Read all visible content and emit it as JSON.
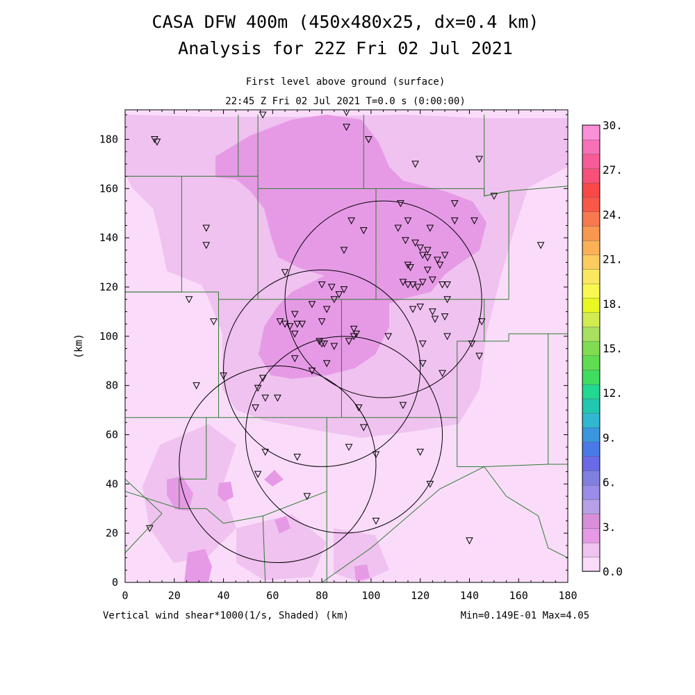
{
  "title_line1": "CASA DFW 400m (450x480x25, dx=0.4 km)",
  "title_line2": "Analysis for 22Z Fri 02 Jul 2021",
  "subtitle_line1": "First level above ground (surface)",
  "subtitle_line2": "22:45 Z Fri 02 Jul 2021   T=0.0 s (0:00:00)",
  "footer_left": "Vertical wind shear*1000(1/s, Shaded)  (km)",
  "footer_right": "Min=0.149E-01 Max=4.05",
  "y_axis_label": "(km)",
  "x_ticks": [
    "0",
    "20",
    "40",
    "60",
    "80",
    "100",
    "120",
    "140",
    "160",
    "180"
  ],
  "y_ticks": [
    "0",
    "20",
    "40",
    "60",
    "80",
    "100",
    "120",
    "140",
    "160",
    "180"
  ],
  "colorbar_labels": [
    "30.",
    "27.",
    "24.",
    "21.",
    "18.",
    "15.",
    "12.",
    "9.",
    "6.",
    "3.",
    "0.0"
  ],
  "colorbar_colors": [
    "#fadcfa",
    "#f0c2f0",
    "#e69ae6",
    "#d88ed8",
    "#b8a0e8",
    "#9a8ce8",
    "#8080e0",
    "#6a6ae8",
    "#4a7ae8",
    "#3a96e0",
    "#30b8d0",
    "#20c8b0",
    "#20d890",
    "#40dc60",
    "#60dc50",
    "#80dc50",
    "#a8e060",
    "#d0ec50",
    "#e8f820",
    "#f8f850",
    "#fce860",
    "#fccc60",
    "#fcb058",
    "#f89850",
    "#f87850",
    "#f85848",
    "#f84848",
    "#f85078",
    "#f85c98",
    "#f870b8",
    "#fc90d8"
  ],
  "radar_markers": [
    [
      12,
      180
    ],
    [
      13,
      179
    ],
    [
      56,
      190
    ],
    [
      90,
      191
    ],
    [
      90,
      185
    ],
    [
      99,
      180
    ],
    [
      118,
      170
    ],
    [
      144,
      172
    ],
    [
      150,
      157
    ],
    [
      33,
      144
    ],
    [
      33,
      137
    ],
    [
      112,
      154
    ],
    [
      134,
      154
    ],
    [
      92,
      147
    ],
    [
      115,
      147
    ],
    [
      134,
      147
    ],
    [
      142,
      147
    ],
    [
      111,
      144
    ],
    [
      124,
      144
    ],
    [
      97,
      143
    ],
    [
      169,
      137
    ],
    [
      114,
      139
    ],
    [
      118,
      138
    ],
    [
      120,
      136
    ],
    [
      123,
      135
    ],
    [
      89,
      135
    ],
    [
      121,
      133
    ],
    [
      123,
      132
    ],
    [
      127,
      131
    ],
    [
      130,
      133
    ],
    [
      115,
      129
    ],
    [
      116,
      128
    ],
    [
      123,
      127
    ],
    [
      128,
      129
    ],
    [
      65,
      126
    ],
    [
      113,
      122
    ],
    [
      115,
      121
    ],
    [
      117,
      121
    ],
    [
      119,
      120
    ],
    [
      121,
      122
    ],
    [
      125,
      123
    ],
    [
      129,
      121
    ],
    [
      131,
      121
    ],
    [
      80,
      121
    ],
    [
      84,
      120
    ],
    [
      89,
      119
    ],
    [
      87,
      117
    ],
    [
      85,
      115
    ],
    [
      26,
      115
    ],
    [
      76,
      113
    ],
    [
      82,
      111
    ],
    [
      120,
      112
    ],
    [
      117,
      111
    ],
    [
      131,
      115
    ],
    [
      125,
      110
    ],
    [
      126,
      107
    ],
    [
      130,
      108
    ],
    [
      69,
      109
    ],
    [
      63,
      106
    ],
    [
      65,
      105
    ],
    [
      67,
      104
    ],
    [
      70,
      105
    ],
    [
      72,
      105
    ],
    [
      80,
      106
    ],
    [
      36,
      106
    ],
    [
      145,
      106
    ],
    [
      93,
      103
    ],
    [
      94,
      101
    ],
    [
      93,
      100
    ],
    [
      69,
      101
    ],
    [
      107,
      100
    ],
    [
      131,
      100
    ],
    [
      79,
      98
    ],
    [
      81,
      97
    ],
    [
      80,
      97
    ],
    [
      85,
      96
    ],
    [
      91,
      98
    ],
    [
      121,
      97
    ],
    [
      141,
      97
    ],
    [
      69,
      91
    ],
    [
      82,
      89
    ],
    [
      76,
      86
    ],
    [
      121,
      89
    ],
    [
      129,
      85
    ],
    [
      40,
      84
    ],
    [
      56,
      83
    ],
    [
      144,
      92
    ],
    [
      29,
      80
    ],
    [
      54,
      79
    ],
    [
      57,
      75
    ],
    [
      62,
      75
    ],
    [
      113,
      72
    ],
    [
      95,
      71
    ],
    [
      53,
      71
    ],
    [
      97,
      63
    ],
    [
      57,
      53
    ],
    [
      70,
      51
    ],
    [
      91,
      55
    ],
    [
      102,
      52
    ],
    [
      120,
      53
    ],
    [
      54,
      44
    ],
    [
      74,
      35
    ],
    [
      124,
      40
    ],
    [
      10,
      22
    ],
    [
      102,
      25
    ],
    [
      140,
      17
    ]
  ],
  "radar_rings": [
    [
      62,
      48,
      40
    ],
    [
      80,
      87,
      40
    ],
    [
      89,
      60,
      40
    ],
    [
      105,
      115,
      40
    ]
  ],
  "county_lines": [
    [
      [
        0,
        165
      ],
      [
        23,
        165
      ],
      [
        23,
        118
      ],
      [
        0,
        118
      ]
    ],
    [
      [
        46,
        190
      ],
      [
        46,
        165
      ],
      [
        23,
        165
      ]
    ],
    [
      [
        46,
        165
      ],
      [
        54,
        165
      ],
      [
        54,
        160
      ]
    ],
    [
      [
        54,
        190
      ],
      [
        54,
        165
      ]
    ],
    [
      [
        54,
        160
      ],
      [
        102,
        160
      ],
      [
        102,
        128
      ]
    ],
    [
      [
        97,
        190
      ],
      [
        97,
        160
      ]
    ],
    [
      [
        102,
        160
      ],
      [
        146,
        160
      ],
      [
        146,
        157
      ]
    ],
    [
      [
        146,
        190
      ],
      [
        146,
        157
      ],
      [
        156,
        159
      ],
      [
        180,
        161
      ]
    ],
    [
      [
        146,
        157
      ],
      [
        156,
        159
      ],
      [
        156,
        115
      ],
      [
        146,
        115
      ]
    ],
    [
      [
        54,
        160
      ],
      [
        54,
        115
      ]
    ],
    [
      [
        0,
        118
      ],
      [
        38,
        118
      ],
      [
        38,
        67
      ],
      [
        0,
        67
      ]
    ],
    [
      [
        38,
        118
      ],
      [
        38,
        115
      ],
      [
        88,
        115
      ],
      [
        102,
        115
      ],
      [
        146,
        115
      ],
      [
        146,
        98
      ],
      [
        156,
        98
      ],
      [
        156,
        101
      ],
      [
        172,
        101
      ],
      [
        172,
        48
      ],
      [
        180,
        48
      ]
    ],
    [
      [
        172,
        101
      ],
      [
        180,
        101
      ]
    ],
    [
      [
        88,
        115
      ],
      [
        88,
        67
      ]
    ],
    [
      [
        102,
        128
      ],
      [
        102,
        115
      ]
    ],
    [
      [
        38,
        67
      ],
      [
        88,
        67
      ],
      [
        135,
        67
      ],
      [
        135,
        98
      ],
      [
        146,
        98
      ]
    ],
    [
      [
        135,
        67
      ],
      [
        135,
        47
      ],
      [
        146,
        47
      ],
      [
        172,
        48
      ]
    ],
    [
      [
        33,
        67
      ],
      [
        33,
        42
      ],
      [
        22,
        42
      ],
      [
        22,
        30
      ]
    ],
    [
      [
        0,
        37
      ],
      [
        22,
        30
      ],
      [
        33,
        30
      ],
      [
        40,
        24
      ]
    ],
    [
      [
        0,
        42
      ],
      [
        15,
        28
      ]
    ],
    [
      [
        40,
        24
      ],
      [
        56,
        27
      ],
      [
        82,
        37
      ],
      [
        82,
        67
      ]
    ],
    [
      [
        82,
        37
      ],
      [
        82,
        0
      ]
    ],
    [
      [
        56,
        27
      ],
      [
        57,
        0
      ]
    ],
    [
      [
        146,
        47
      ],
      [
        128,
        38
      ],
      [
        100,
        14
      ],
      [
        80,
        0
      ]
    ],
    [
      [
        146,
        47
      ],
      [
        155,
        35
      ],
      [
        168,
        27
      ],
      [
        172,
        14
      ],
      [
        180,
        10
      ]
    ],
    [
      [
        15,
        28
      ],
      [
        0,
        12
      ]
    ]
  ]
}
